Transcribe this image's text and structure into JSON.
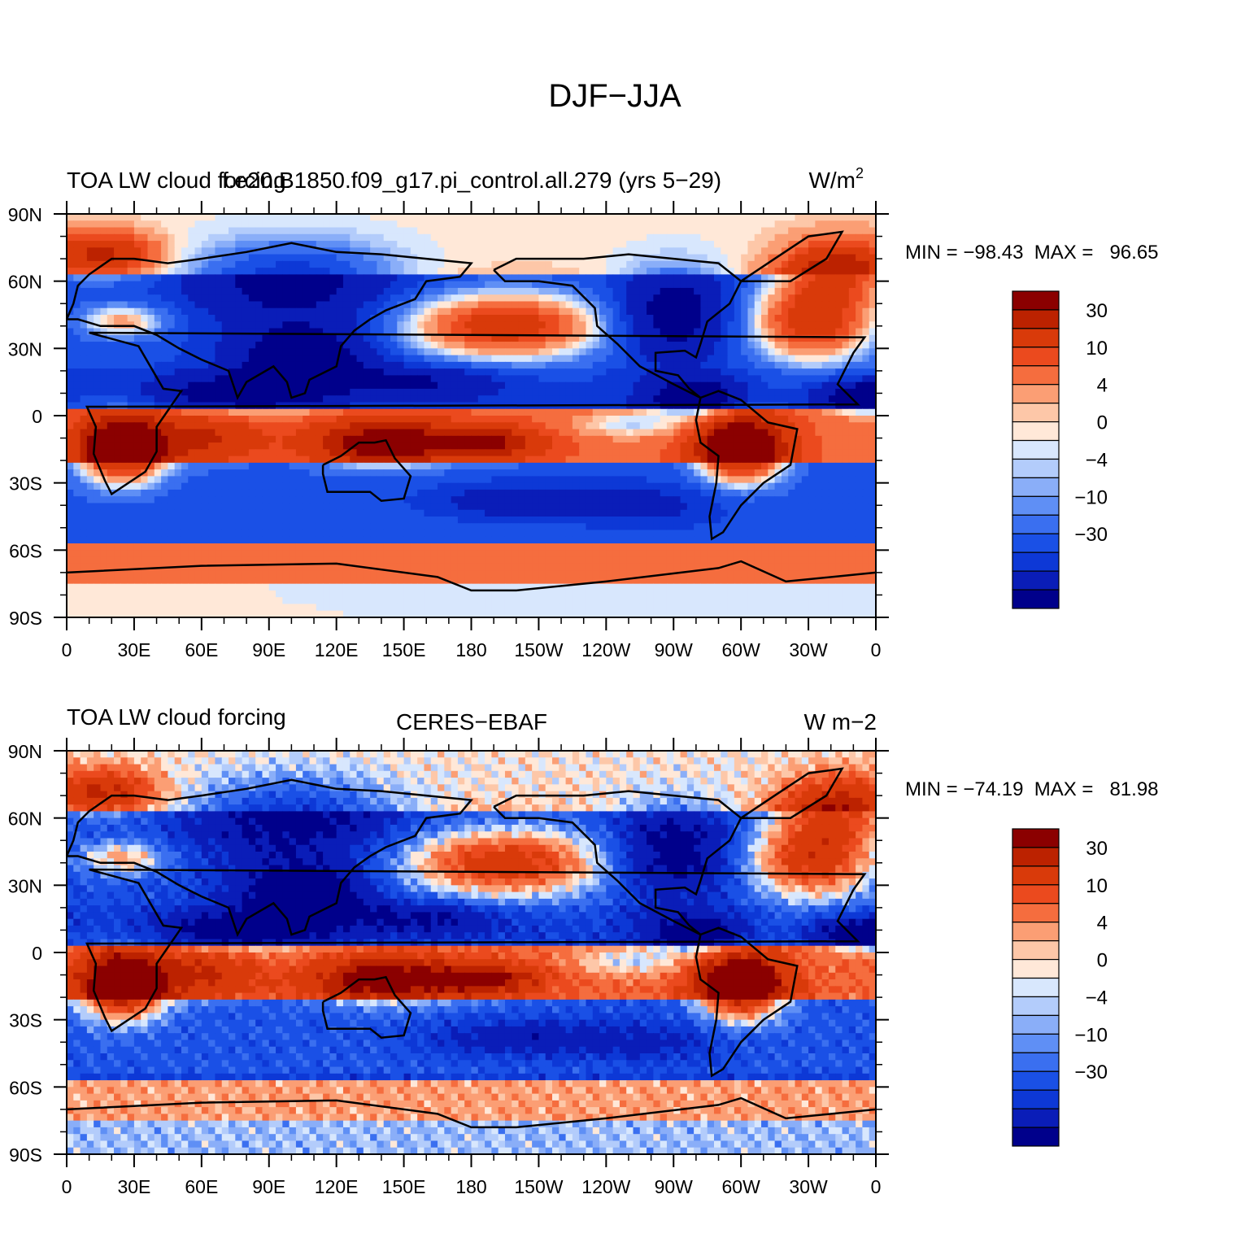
{
  "figure": {
    "title": "DJF−JJA"
  },
  "colors": {
    "levels": [
      -40,
      -30,
      -20,
      -15,
      -10,
      -6,
      -4,
      -2,
      0,
      2,
      4,
      6,
      10,
      15,
      20,
      30,
      40
    ],
    "bins": [
      "#00008b",
      "#0a1db8",
      "#0d38d6",
      "#1a50e6",
      "#3a6ff0",
      "#5f8ff5",
      "#8aaef8",
      "#b3ccfb",
      "#d8e7fd",
      "#ffe8d8",
      "#fdc7a8",
      "#fb9e74",
      "#f56d3e",
      "#eb4a1e",
      "#d93a0a",
      "#bc2200",
      "#8b0000"
    ],
    "coast": "#000000"
  },
  "panels": [
    {
      "left_title": "TOA LW cloud forcing",
      "center_title": "f.e20.B1850.f09_g17.pi_control.all.279 (yrs 5−29)",
      "right_units": "W/m",
      "right_units_sup": "2",
      "stats": "MIN = −98.43  MAX =   96.65",
      "map_style": "model"
    },
    {
      "left_title": "TOA LW cloud forcing",
      "center_title": "CERES−EBAF",
      "right_units": "W m−2",
      "right_units_sup": "",
      "stats": "MIN = −74.19  MAX =   81.98",
      "map_style": "obs"
    }
  ],
  "axes": {
    "x_ticks": [
      "0",
      "30E",
      "60E",
      "90E",
      "120E",
      "150E",
      "180",
      "150W",
      "120W",
      "90W",
      "60W",
      "30W",
      "0"
    ],
    "y_ticks": [
      "90N",
      "60N",
      "30N",
      "0",
      "30S",
      "60S",
      "90S"
    ]
  },
  "colorbar": {
    "labels": [
      "30",
      "10",
      "4",
      "0",
      "−4",
      "−10",
      "−30"
    ]
  },
  "chart_data": [
    {
      "type": "heatmap",
      "title": "f.e20.B1850.f09_g17.pi_control.all.279 (yrs 5−29)",
      "variable": "TOA LW cloud forcing",
      "units": "W/m2",
      "season_difference": "DJF−JJA",
      "x_range": [
        0,
        360
      ],
      "y_range": [
        -90,
        90
      ],
      "min": -98.43,
      "max": 96.65,
      "contour_levels": [
        -40,
        -30,
        -20,
        -15,
        -10,
        -6,
        -4,
        -2,
        0,
        2,
        4,
        6,
        10,
        15,
        20,
        30,
        40
      ]
    },
    {
      "type": "heatmap",
      "title": "CERES−EBAF",
      "variable": "TOA LW cloud forcing",
      "units": "W m−2",
      "season_difference": "DJF−JJA",
      "x_range": [
        0,
        360
      ],
      "y_range": [
        -90,
        90
      ],
      "min": -74.19,
      "max": 81.98,
      "contour_levels": [
        -40,
        -30,
        -20,
        -15,
        -10,
        -6,
        -4,
        -2,
        0,
        2,
        4,
        6,
        10,
        15,
        20,
        30,
        40
      ]
    }
  ]
}
